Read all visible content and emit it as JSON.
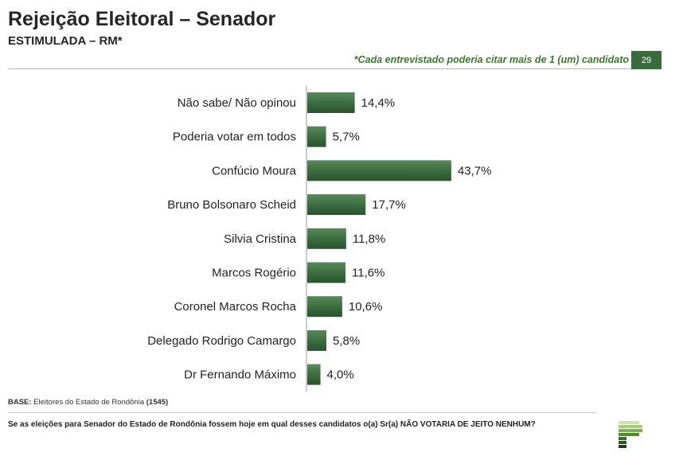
{
  "header": {
    "title": "Rejeição Eleitoral – Senador",
    "subtitle": "ESTIMULADA – RM*",
    "note": "*Cada entrevistado poderia citar mais de 1 (um) candidato",
    "page_number": "29"
  },
  "chart_data": {
    "type": "bar",
    "orientation": "horizontal",
    "categories": [
      "Não sabe/ Não opinou",
      "Poderia votar em todos",
      "Confúcio Moura",
      "Bruno Bolsonaro Scheid",
      "Silvia Cristina",
      "Marcos Rogério",
      "Coronel Marcos Rocha",
      "Delegado Rodrigo Camargo",
      "Dr Fernando Máximo"
    ],
    "values": [
      14.4,
      5.7,
      43.7,
      17.7,
      11.8,
      11.6,
      10.6,
      5.8,
      4.0
    ],
    "value_labels": [
      "14,4%",
      "5,7%",
      "43,7%",
      "17,7%",
      "11,8%",
      "11,6%",
      "10,6%",
      "5,8%",
      "4,0%"
    ],
    "xlim": [
      0,
      100
    ],
    "grid": false,
    "bar_color": "#3d6e40"
  },
  "footer": {
    "base_label": "BASE:",
    "base_text": "Eleitores do Estado de Rondônia",
    "base_count": "(1545)",
    "question": "Se as eleições para Senador do Estado de Rondônia fossem hoje em qual desses candidatos o(a) Sr(a) NÃO VOTARIA DE JEITO NENHUM?"
  },
  "colors": {
    "accent": "#3a6b3e",
    "note": "#3b7a2c"
  },
  "logo": {
    "icon": "stepped-p-logo-icon"
  }
}
